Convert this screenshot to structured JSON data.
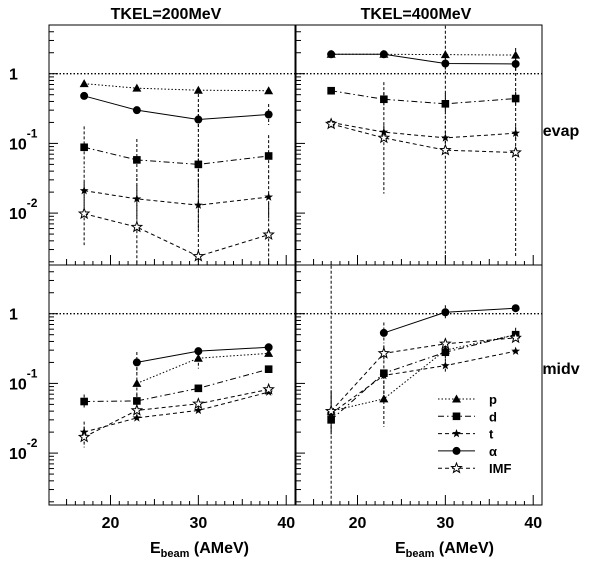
{
  "figure": {
    "columns": [
      "TKEL=200MeV",
      "TKEL=400MeV"
    ],
    "rows": [
      "evap",
      "midv"
    ],
    "xlabel_main": "E",
    "xlabel_sub": "beam",
    "xlabel_unit": " (AMeV)",
    "y_tick_labels": [
      {
        "base": "1",
        "exp": ""
      },
      {
        "base": "10",
        "exp": "-1"
      },
      {
        "base": "10",
        "exp": "-2"
      }
    ],
    "x_tick_labels": [
      "20",
      "30",
      "40"
    ]
  },
  "legend": [
    {
      "label": "p",
      "marker": "triangle",
      "line": "dotted"
    },
    {
      "label": "d",
      "marker": "square",
      "line": "dashdot"
    },
    {
      "label": "t",
      "marker": "star",
      "line": "dashed"
    },
    {
      "label": "α",
      "marker": "circle",
      "line": "solid"
    },
    {
      "label": "IMF",
      "marker": "openstar",
      "line": "dashed"
    }
  ],
  "chart_data": [
    {
      "type": "line",
      "title": "TKEL=200MeV",
      "row_label": "evap",
      "xlim": [
        13,
        41
      ],
      "ylim": [
        0.0018,
        5
      ],
      "yscale": "log",
      "reference_line_y": 1,
      "series": [
        {
          "name": "p",
          "x": [
            17,
            23,
            30,
            38
          ],
          "y": [
            0.72,
            0.62,
            0.58,
            0.57
          ],
          "err": [
            0,
            0,
            0,
            0
          ]
        },
        {
          "name": "d",
          "x": [
            17,
            23,
            30,
            38
          ],
          "y": [
            0.088,
            0.058,
            0.05,
            0.066
          ],
          "err": [
            0.3,
            0.3,
            0.3,
            0.3
          ]
        },
        {
          "name": "t",
          "x": [
            17,
            23,
            30,
            38
          ],
          "y": [
            0.021,
            0.016,
            0.013,
            0.017
          ],
          "err": [
            0.3,
            0.3,
            0.35,
            0.3
          ]
        },
        {
          "name": "α",
          "x": [
            17,
            23,
            30,
            38
          ],
          "y": [
            0.48,
            0.3,
            0.22,
            0.26
          ],
          "err": [
            0,
            0,
            0.15,
            0.15
          ]
        },
        {
          "name": "IMF",
          "x": [
            17,
            23,
            30,
            38
          ],
          "y": [
            0.0098,
            0.0063,
            0.0024,
            0.0049
          ],
          "err": [
            0.45,
            0.6,
            2.4,
            0.45
          ]
        }
      ]
    },
    {
      "type": "line",
      "title": "TKEL=400MeV",
      "row_label": "evap",
      "xlim": [
        13,
        41
      ],
      "ylim": [
        0.0018,
        5
      ],
      "yscale": "log",
      "reference_line_y": 1,
      "series": [
        {
          "name": "p",
          "x": [
            17,
            23,
            30,
            38
          ],
          "y": [
            1.9,
            1.9,
            1.88,
            1.85
          ],
          "err": [
            0,
            0,
            0,
            0
          ]
        },
        {
          "name": "d",
          "x": [
            17,
            23,
            30,
            38
          ],
          "y": [
            0.57,
            0.43,
            0.37,
            0.44
          ],
          "err": [
            0,
            0.1,
            0.15,
            0.1
          ]
        },
        {
          "name": "t",
          "x": [
            17,
            23,
            30,
            38
          ],
          "y": [
            0.2,
            0.145,
            0.12,
            0.14
          ],
          "err": [
            0,
            0.1,
            0.25,
            0.1
          ]
        },
        {
          "name": "α",
          "x": [
            17,
            23,
            30,
            38
          ],
          "y": [
            1.9,
            1.9,
            1.4,
            1.38
          ],
          "err": [
            0,
            0,
            0.1,
            0.1
          ]
        },
        {
          "name": "IMF",
          "x": [
            17,
            23,
            30,
            38
          ],
          "y": [
            0.19,
            0.12,
            0.08,
            0.074
          ],
          "err": [
            0.05,
            0.8,
            2.0,
            1.5
          ]
        }
      ]
    },
    {
      "type": "line",
      "title": "TKEL=200MeV",
      "row_label": "midv",
      "xlim": [
        13,
        41
      ],
      "ylim": [
        0.0018,
        5
      ],
      "yscale": "log",
      "reference_line_y": 1,
      "series": [
        {
          "name": "p",
          "x": [
            23,
            30,
            38
          ],
          "y": [
            0.1,
            0.23,
            0.27
          ],
          "err": [
            0.3,
            0.15,
            0
          ]
        },
        {
          "name": "d",
          "x": [
            17,
            23,
            30,
            38
          ],
          "y": [
            0.055,
            0.056,
            0.085,
            0.16
          ],
          "err": [
            0.1,
            0.1,
            0,
            0
          ]
        },
        {
          "name": "t",
          "x": [
            17,
            23,
            30,
            38
          ],
          "y": [
            0.02,
            0.032,
            0.041,
            0.075
          ],
          "err": [
            0.15,
            0,
            0,
            0
          ]
        },
        {
          "name": "α",
          "x": [
            23,
            30,
            38
          ],
          "y": [
            0.2,
            0.29,
            0.33
          ],
          "err": [
            0.15,
            0,
            0
          ]
        },
        {
          "name": "IMF",
          "x": [
            17,
            23,
            30,
            38
          ],
          "y": [
            0.017,
            0.041,
            0.051,
            0.082
          ],
          "err": [
            0.15,
            0,
            0,
            0
          ]
        }
      ]
    },
    {
      "type": "line",
      "title": "TKEL=400MeV",
      "row_label": "midv",
      "xlim": [
        13,
        41
      ],
      "ylim": [
        0.0018,
        5
      ],
      "yscale": "log",
      "reference_line_y": 1,
      "series": [
        {
          "name": "p",
          "x": [
            17,
            23,
            30,
            38
          ],
          "y": [
            0.04,
            0.06,
            0.3,
            0.5
          ],
          "err": [
            0.3,
            0.4,
            0,
            0
          ]
        },
        {
          "name": "d",
          "x": [
            17,
            23,
            30,
            38
          ],
          "y": [
            0.03,
            0.14,
            0.28,
            0.5
          ],
          "err": [
            3,
            0.4,
            0.1,
            0.1
          ]
        },
        {
          "name": "t",
          "x": [
            17,
            23,
            30,
            38
          ],
          "y": [
            0.037,
            0.13,
            0.18,
            0.29
          ],
          "err": [
            0.3,
            0,
            0.1,
            0
          ]
        },
        {
          "name": "α",
          "x": [
            23,
            30,
            38
          ],
          "y": [
            0.53,
            1.05,
            1.2
          ],
          "err": [
            0.15,
            0.1,
            0
          ]
        },
        {
          "name": "IMF",
          "x": [
            17,
            23,
            30,
            38
          ],
          "y": [
            0.04,
            0.27,
            0.37,
            0.45
          ],
          "err": [
            0,
            0.1,
            0,
            0
          ]
        }
      ]
    }
  ]
}
